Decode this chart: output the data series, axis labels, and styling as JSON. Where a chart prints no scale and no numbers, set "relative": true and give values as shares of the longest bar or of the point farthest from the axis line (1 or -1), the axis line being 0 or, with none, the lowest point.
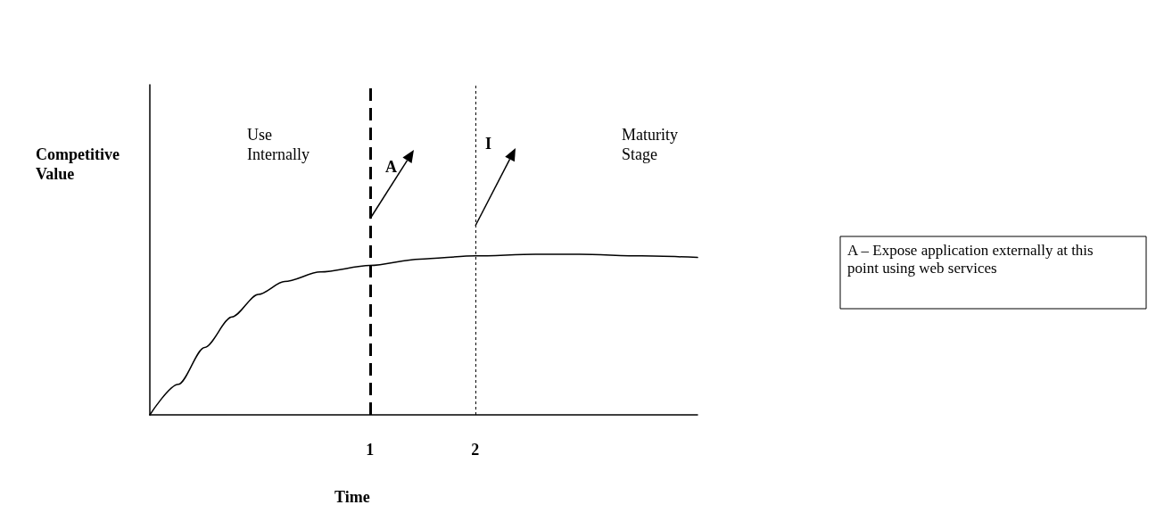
{
  "chart_data": {
    "type": "line",
    "relative": true,
    "xlabel": "Time",
    "ylabel": "Competitive Value",
    "x": [
      -1.09,
      -0.82,
      -0.57,
      -0.31,
      -0.06,
      0.19,
      0.53,
      1,
      1.47,
      2,
      2.57,
      2.99,
      3.58,
      4.11
    ],
    "values": [
      0,
      0.19,
      0.42,
      0.61,
      0.75,
      0.83,
      0.89,
      0.93,
      0.97,
      0.99,
      1,
      1,
      0.99,
      0.98
    ],
    "color": "#000000",
    "marker": "none",
    "line_style": "solid",
    "xlim": [
      -1.09,
      4.11
    ],
    "xticks": [
      1,
      2
    ],
    "ref_lines": [
      {
        "axis": "x",
        "value": 1,
        "line_style": "dashed",
        "color": "#000000"
      },
      {
        "axis": "x",
        "value": 2,
        "line_style": "dotted",
        "color": "#000000"
      }
    ],
    "annotations": [
      "Use Internally",
      "A",
      "I",
      "Maturity Stage",
      "A – Expose application externally at this point using web services"
    ],
    "grid": false
  }
}
